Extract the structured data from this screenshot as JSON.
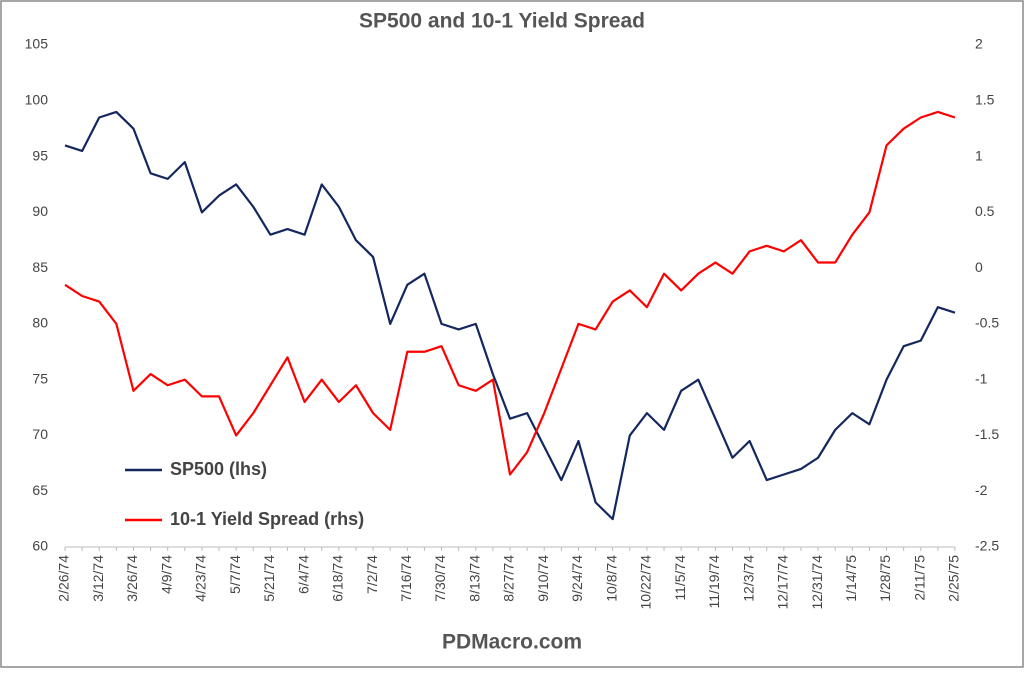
{
  "chart_data": {
    "type": "line",
    "title": "SP500 and 10-1 Yield Spread",
    "source": "PDMacro.com",
    "categories": [
      "2/26/74",
      null,
      "3/12/74",
      null,
      "3/26/74",
      null,
      "4/9/74",
      null,
      "4/23/74",
      null,
      "5/7/74",
      null,
      "5/21/74",
      null,
      "6/4/74",
      null,
      "6/18/74",
      null,
      "7/2/74",
      null,
      "7/16/74",
      null,
      "7/30/74",
      null,
      "8/13/74",
      null,
      "8/27/74",
      null,
      "9/10/74",
      null,
      "9/24/74",
      null,
      "10/8/74",
      null,
      "10/22/74",
      null,
      "11/5/74",
      null,
      "11/19/74",
      null,
      "12/3/74",
      null,
      "12/17/74",
      null,
      "12/31/74",
      null,
      "1/14/75",
      null,
      "1/28/75",
      null,
      "2/11/75",
      null,
      "2/25/75"
    ],
    "series": [
      {
        "name": "SP500 (lhs)",
        "color": "#14275e",
        "axis": "y",
        "values": [
          96,
          95.5,
          98.5,
          99,
          97.5,
          93.5,
          93,
          94.5,
          90,
          91.5,
          92.5,
          90.5,
          88,
          88.5,
          88,
          92.5,
          90.5,
          87.5,
          86,
          80,
          83.5,
          84.5,
          80,
          79.5,
          80,
          75.5,
          71.5,
          72,
          69,
          66,
          69.5,
          64,
          62.5,
          70,
          72,
          70.5,
          74,
          75,
          71.5,
          68,
          69.5,
          66,
          66.5,
          67,
          68,
          70.5,
          72,
          71,
          75,
          78,
          78.5,
          81.5,
          81
        ]
      },
      {
        "name": "10-1 Yield Spread (rhs)",
        "color": "#ff0000",
        "axis": "y2",
        "values": [
          -0.15,
          -0.25,
          -0.3,
          -0.5,
          -1.1,
          -0.95,
          -1.05,
          -1.0,
          -1.15,
          -1.15,
          -1.5,
          -1.3,
          -1.05,
          -0.8,
          -1.2,
          -1.0,
          -1.2,
          -1.05,
          -1.3,
          -1.45,
          -0.75,
          -0.75,
          -0.7,
          -1.05,
          -1.1,
          -1.0,
          -1.85,
          -1.65,
          -1.3,
          -0.9,
          -0.5,
          -0.55,
          -0.3,
          -0.2,
          -0.35,
          -0.05,
          -0.2,
          -0.05,
          0.05,
          -0.05,
          0.15,
          0.2,
          0.15,
          0.25,
          0.05,
          0.05,
          0.3,
          0.5,
          1.1,
          1.25,
          1.35,
          1.4,
          1.35
        ]
      }
    ],
    "ylim": [
      60,
      105
    ],
    "yticks": [
      60,
      65,
      70,
      75,
      80,
      85,
      90,
      95,
      100,
      105
    ],
    "y2lim": [
      -2.5,
      2
    ],
    "y2ticks": [
      -2.5,
      -2,
      -1.5,
      -1,
      -0.5,
      0,
      0.5,
      1,
      1.5,
      2
    ],
    "legend": "lower-left"
  }
}
